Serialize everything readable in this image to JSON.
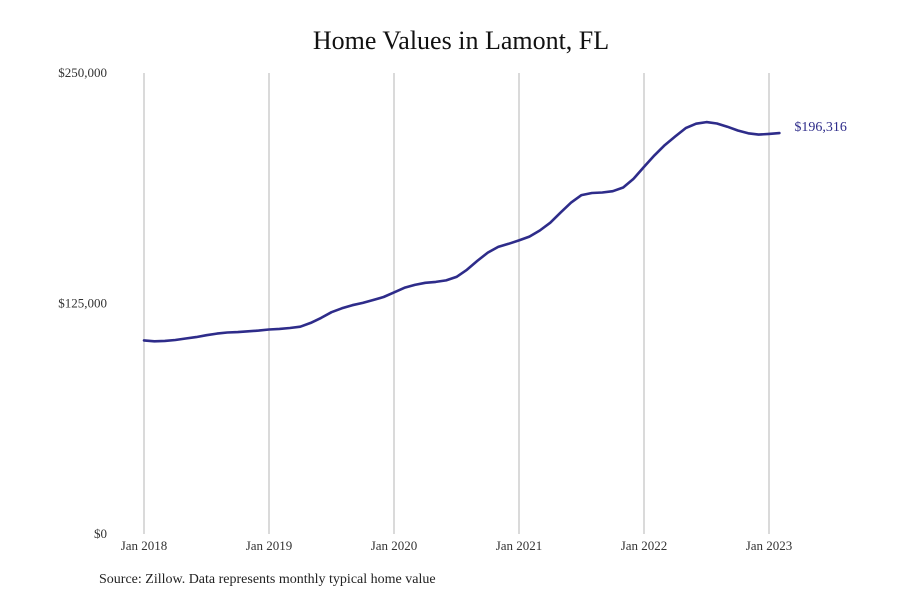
{
  "chart_data": {
    "type": "line",
    "title": "Home Values in Lamont, FL",
    "xlabel": "",
    "ylabel": "",
    "ylim": [
      0,
      250000
    ],
    "yticks": [
      {
        "value": 0,
        "label": "$0"
      },
      {
        "value": 125000,
        "label": "$125,000"
      },
      {
        "value": 250000,
        "label": "$250,000"
      }
    ],
    "xticks": [
      {
        "value": "2018-01",
        "label": "Jan 2018"
      },
      {
        "value": "2019-01",
        "label": "Jan 2019"
      },
      {
        "value": "2020-01",
        "label": "Jan 2020"
      },
      {
        "value": "2021-01",
        "label": "Jan 2021"
      },
      {
        "value": "2022-01",
        "label": "Jan 2022"
      },
      {
        "value": "2023-01",
        "label": "Jan 2023"
      }
    ],
    "grid": "vertical",
    "legend": "none",
    "end_label": "$196,316",
    "line_color": "#2e2c8a",
    "series": [
      {
        "x": [
          "2018-01",
          "2018-02",
          "2018-03",
          "2018-04",
          "2018-05",
          "2018-06",
          "2018-07",
          "2018-08",
          "2018-09",
          "2018-10",
          "2018-11",
          "2018-12",
          "2019-01",
          "2019-02",
          "2019-03",
          "2019-04",
          "2019-05",
          "2019-06",
          "2019-07",
          "2019-08",
          "2019-09",
          "2019-10",
          "2019-11",
          "2019-12",
          "2020-01",
          "2020-02",
          "2020-03",
          "2020-04",
          "2020-05",
          "2020-06",
          "2020-07",
          "2020-08",
          "2020-09",
          "2020-10",
          "2020-11",
          "2020-12",
          "2021-01",
          "2021-02",
          "2021-03",
          "2021-04",
          "2021-05",
          "2021-06",
          "2021-07",
          "2021-08",
          "2021-09",
          "2021-10",
          "2021-11",
          "2021-12",
          "2022-01",
          "2022-02",
          "2022-03",
          "2022-04",
          "2022-05",
          "2022-06",
          "2022-07",
          "2022-08",
          "2022-09",
          "2022-10",
          "2022-11",
          "2022-12",
          "2023-01",
          "2023-02"
        ],
        "values": [
          105000,
          104500,
          104700,
          105200,
          106000,
          106800,
          107800,
          108700,
          109300,
          109500,
          109900,
          110300,
          110900,
          111200,
          111700,
          112400,
          114500,
          117200,
          120300,
          122400,
          124100,
          125300,
          126900,
          128500,
          131000,
          133500,
          135100,
          136200,
          136700,
          137500,
          139400,
          143300,
          148100,
          152600,
          155700,
          157400,
          159200,
          161300,
          164600,
          168800,
          174400,
          179700,
          183800,
          184900,
          185200,
          185900,
          187900,
          192700,
          199100,
          205300,
          210900,
          215600,
          220100,
          222500,
          223400,
          222600,
          220900,
          218800,
          217300,
          216600,
          217000,
          196316
        ]
      }
    ]
  },
  "source_note": "Source: Zillow. Data represents monthly typical home value"
}
